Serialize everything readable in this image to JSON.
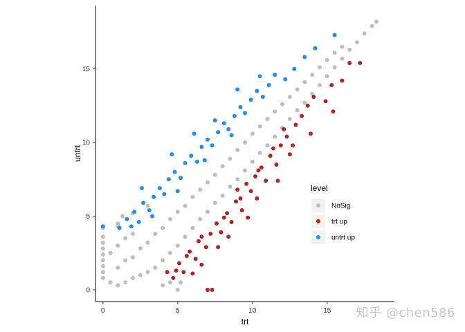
{
  "chart_data": {
    "type": "scatter",
    "title": "",
    "xlabel": "trt",
    "ylabel": "untrt",
    "xlim": [
      -0.5,
      19.5
    ],
    "ylim": [
      -0.8,
      19.3
    ],
    "x_ticks": [
      0,
      5,
      10,
      15
    ],
    "y_ticks": [
      0,
      5,
      10,
      15
    ],
    "x_tick_labels": [
      "0",
      "5",
      "10",
      "15"
    ],
    "y_tick_labels": [
      "0",
      "5",
      "10",
      "15"
    ],
    "grid": false,
    "legend_position": "right",
    "legend_title": "level",
    "series": [
      {
        "name": "NoSig",
        "color": "#bebebe",
        "points": [
          [
            0,
            0.8
          ],
          [
            0,
            1.2
          ],
          [
            0,
            1.6
          ],
          [
            0,
            2.0
          ],
          [
            0,
            2.4
          ],
          [
            0,
            2.8
          ],
          [
            0,
            3.2
          ],
          [
            0,
            3.6
          ],
          [
            0,
            4.2
          ],
          [
            0.5,
            0.5
          ],
          [
            0.5,
            2.5
          ],
          [
            1,
            0.3
          ],
          [
            1,
            1.5
          ],
          [
            1,
            3.0
          ],
          [
            1,
            4.3
          ],
          [
            1.5,
            0.5
          ],
          [
            1.5,
            2.0
          ],
          [
            1.5,
            3.5
          ],
          [
            2,
            0.8
          ],
          [
            2,
            2.2
          ],
          [
            2,
            3.8
          ],
          [
            2.5,
            1.0
          ],
          [
            2.5,
            2.8
          ],
          [
            3,
            1.2
          ],
          [
            3,
            3.2
          ],
          [
            3.5,
            1.5
          ],
          [
            3.5,
            3.8
          ],
          [
            4,
            2.0
          ],
          [
            4,
            4.2
          ],
          [
            4.5,
            2.5
          ],
          [
            4.5,
            4.8
          ],
          [
            5,
            3.0
          ],
          [
            5,
            5.3
          ],
          [
            5.5,
            3.6
          ],
          [
            5.5,
            5.7
          ],
          [
            6,
            4.2
          ],
          [
            6,
            6.3
          ],
          [
            6.5,
            4.8
          ],
          [
            6.5,
            6.8
          ],
          [
            7,
            5.3
          ],
          [
            7,
            7.3
          ],
          [
            7.5,
            5.9
          ],
          [
            7.5,
            7.8
          ],
          [
            8,
            6.4
          ],
          [
            8,
            8.4
          ],
          [
            8.5,
            7.0
          ],
          [
            8.5,
            8.9
          ],
          [
            9,
            7.5
          ],
          [
            9,
            9.5
          ],
          [
            9.5,
            8.1
          ],
          [
            9.5,
            10.0
          ],
          [
            10,
            8.7
          ],
          [
            10,
            10.6
          ],
          [
            10.5,
            9.3
          ],
          [
            10.5,
            11.1
          ],
          [
            11,
            9.8
          ],
          [
            11,
            11.6
          ],
          [
            11.5,
            10.4
          ],
          [
            11.5,
            12.1
          ],
          [
            12,
            11.0
          ],
          [
            12,
            12.6
          ],
          [
            12.5,
            11.6
          ],
          [
            12.5,
            13.1
          ],
          [
            13,
            12.2
          ],
          [
            13,
            13.6
          ],
          [
            13.5,
            12.7
          ],
          [
            13.5,
            14.1
          ],
          [
            14,
            13.3
          ],
          [
            14,
            14.6
          ],
          [
            14.5,
            13.9
          ],
          [
            14.5,
            15.1
          ],
          [
            15,
            14.5
          ],
          [
            15,
            15.6
          ],
          [
            15.5,
            15.1
          ],
          [
            15.5,
            16.1
          ],
          [
            16,
            15.7
          ],
          [
            16,
            16.5
          ],
          [
            16.5,
            16.3
          ],
          [
            17,
            16.8
          ],
          [
            17.5,
            17.4
          ],
          [
            18,
            17.9
          ],
          [
            18.3,
            18.2
          ],
          [
            4,
            0.3
          ],
          [
            4.5,
            0.5
          ],
          [
            5,
            0.0
          ],
          [
            5.2,
            0.5
          ],
          [
            1,
            4.5
          ],
          [
            1.3,
            5.0
          ],
          [
            2,
            5.2
          ],
          [
            3,
            5.7
          ]
        ]
      },
      {
        "name": "trt up",
        "color": "#a52a2a",
        "points": [
          [
            4.3,
            1.2
          ],
          [
            4.7,
            0.8
          ],
          [
            5.1,
            1.8
          ],
          [
            5.4,
            1.2
          ],
          [
            5.8,
            2.6
          ],
          [
            6.2,
            2.1
          ],
          [
            6.4,
            3.3
          ],
          [
            6.9,
            2.9
          ],
          [
            7.0,
            0.0
          ],
          [
            7.3,
            0.0
          ],
          [
            7.2,
            3.8
          ],
          [
            7.6,
            4.5
          ],
          [
            7.9,
            3.9
          ],
          [
            8.3,
            5.2
          ],
          [
            8.6,
            4.6
          ],
          [
            8.9,
            6.0
          ],
          [
            9.3,
            5.4
          ],
          [
            9.0,
            6.8
          ],
          [
            9.6,
            7.2
          ],
          [
            9.9,
            6.7
          ],
          [
            10.2,
            7.7
          ],
          [
            10.6,
            8.3
          ],
          [
            10.9,
            7.4
          ],
          [
            11.2,
            9.1
          ],
          [
            11.6,
            8.5
          ],
          [
            11.9,
            9.8
          ],
          [
            12.3,
            10.4
          ],
          [
            12.7,
            9.8
          ],
          [
            12.9,
            11.2
          ],
          [
            13.3,
            11.8
          ],
          [
            13.7,
            12.5
          ],
          [
            14.1,
            13.1
          ],
          [
            14.9,
            12.8
          ],
          [
            15.3,
            13.9
          ],
          [
            16.0,
            14.2
          ],
          [
            16.5,
            15.4
          ],
          [
            17.2,
            15.4
          ],
          [
            12.1,
            10.9
          ],
          [
            11.4,
            9.6
          ],
          [
            10.4,
            8.1
          ],
          [
            9.2,
            6.2
          ],
          [
            8.1,
            4.9
          ],
          [
            6.6,
            3.6
          ],
          [
            5.6,
            2.3
          ],
          [
            4.9,
            1.3
          ],
          [
            6.0,
            1.1
          ],
          [
            6.6,
            1.7
          ],
          [
            7.7,
            2.9
          ],
          [
            8.4,
            3.6
          ],
          [
            9.7,
            4.9
          ],
          [
            10.3,
            6.2
          ],
          [
            11.7,
            7.4
          ],
          [
            12.5,
            9.2
          ],
          [
            13.9,
            10.6
          ],
          [
            15.4,
            12.1
          ]
        ]
      },
      {
        "name": "untrt up",
        "color": "#2a8ce0",
        "points": [
          [
            0,
            4.3
          ],
          [
            1.1,
            4.2
          ],
          [
            1.6,
            4.8
          ],
          [
            2.1,
            5.3
          ],
          [
            2.4,
            4.6
          ],
          [
            2.7,
            5.9
          ],
          [
            3.1,
            5.4
          ],
          [
            3.4,
            6.3
          ],
          [
            3.8,
            6.9
          ],
          [
            4.1,
            6.5
          ],
          [
            4.4,
            7.5
          ],
          [
            4.8,
            8.0
          ],
          [
            5.2,
            7.6
          ],
          [
            5.5,
            8.6
          ],
          [
            5.9,
            9.1
          ],
          [
            6.3,
            8.7
          ],
          [
            6.6,
            9.7
          ],
          [
            7.0,
            10.2
          ],
          [
            7.3,
            9.8
          ],
          [
            7.7,
            10.7
          ],
          [
            8.1,
            11.3
          ],
          [
            8.4,
            10.9
          ],
          [
            8.8,
            11.8
          ],
          [
            9.2,
            12.4
          ],
          [
            9.5,
            12.0
          ],
          [
            9.9,
            12.9
          ],
          [
            10.3,
            13.5
          ],
          [
            10.7,
            13.1
          ],
          [
            11.1,
            13.9
          ],
          [
            11.5,
            14.6
          ],
          [
            12.2,
            14.3
          ],
          [
            12.8,
            15.0
          ],
          [
            13.5,
            15.8
          ],
          [
            14.2,
            16.4
          ],
          [
            15.5,
            17.3
          ],
          [
            2.6,
            6.9
          ],
          [
            4.6,
            9.2
          ],
          [
            6.1,
            10.6
          ],
          [
            7.5,
            11.5
          ],
          [
            9.0,
            13.6
          ],
          [
            10.5,
            14.5
          ],
          [
            1.9,
            4.3
          ],
          [
            3.3,
            5.0
          ],
          [
            5.0,
            6.7
          ],
          [
            6.8,
            8.8
          ],
          [
            8.6,
            10.5
          ]
        ]
      }
    ]
  },
  "watermark": "知乎 @chen586"
}
